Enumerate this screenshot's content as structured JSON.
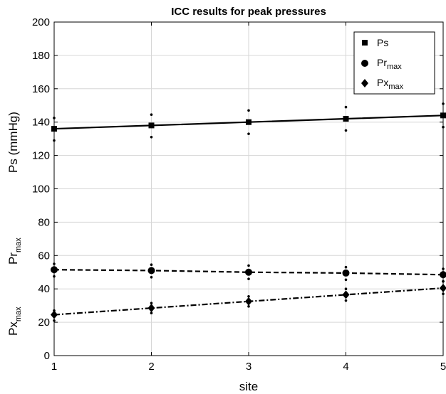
{
  "chart_data": {
    "type": "line",
    "title": "ICC results for peak pressures",
    "xlabel": "site",
    "ylabel": {
      "ps": "Ps  (mmHg)",
      "pr": {
        "main": "Pr",
        "sub": "max"
      },
      "px": {
        "main": "Px",
        "sub": "max"
      }
    },
    "x": [
      1,
      2,
      3,
      4,
      5
    ],
    "xlim": [
      1,
      5
    ],
    "ylim": [
      0,
      200
    ],
    "xticks": [
      "1",
      "2",
      "3",
      "4",
      "5"
    ],
    "yticks": [
      "0",
      "20",
      "40",
      "60",
      "80",
      "100",
      "120",
      "140",
      "160",
      "180",
      "200"
    ],
    "grid": true,
    "legend_position": "top-right",
    "series": [
      {
        "name": "Ps",
        "name_parts": {
          "main": "Ps",
          "sub": ""
        },
        "marker": "square",
        "line": "solid",
        "values": [
          136,
          138,
          140,
          142,
          144
        ],
        "upper": [
          142.5,
          144.5,
          147,
          149,
          151
        ],
        "lower": [
          129,
          131,
          133,
          135,
          137
        ]
      },
      {
        "name": "Prmax",
        "name_parts": {
          "main": "Pr",
          "sub": "max"
        },
        "marker": "circle",
        "line": "dashed",
        "values": [
          51.5,
          51,
          50,
          49.5,
          48.5
        ],
        "upper": [
          55,
          54.5,
          54,
          53,
          52
        ],
        "lower": [
          47.5,
          47,
          46,
          45.5,
          44.5
        ]
      },
      {
        "name": "Pxmax",
        "name_parts": {
          "main": "Px",
          "sub": "max"
        },
        "marker": "diamond",
        "line": "dashdot",
        "values": [
          24.5,
          28.5,
          32.5,
          36.5,
          40.5
        ],
        "upper": [
          27,
          31.5,
          35.5,
          40,
          44.5
        ],
        "lower": [
          21,
          25.5,
          29.5,
          33,
          37
        ]
      }
    ]
  }
}
